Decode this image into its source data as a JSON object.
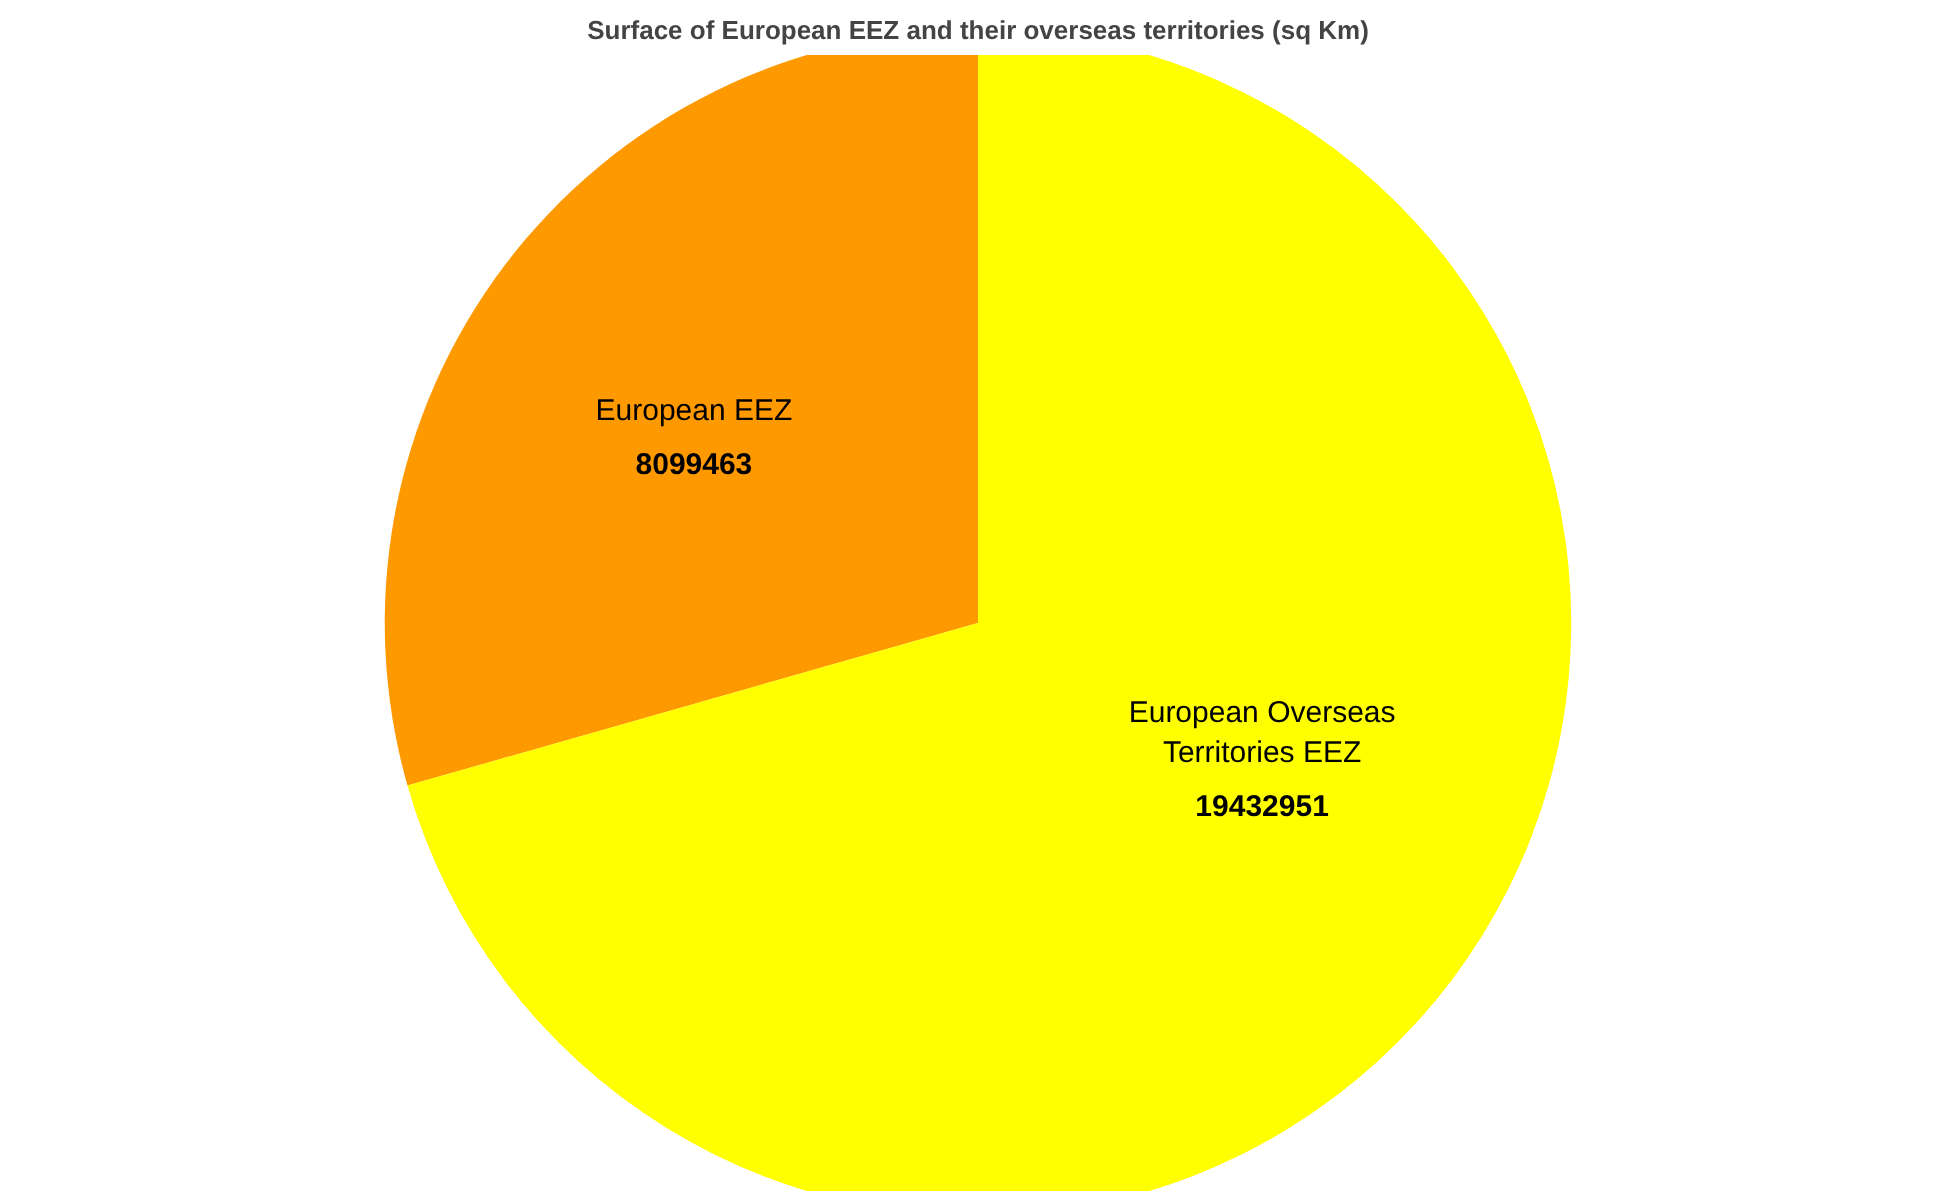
{
  "chart_data": {
    "type": "pie",
    "title": "Surface of European EEZ and their overseas territories (sq Km)",
    "categories": [
      "European EEZ",
      "European Overseas Territories EEZ"
    ],
    "values": [
      8099463,
      19432951
    ],
    "colors": [
      "#ff9900",
      "#ffff00"
    ],
    "data_labels": true
  }
}
